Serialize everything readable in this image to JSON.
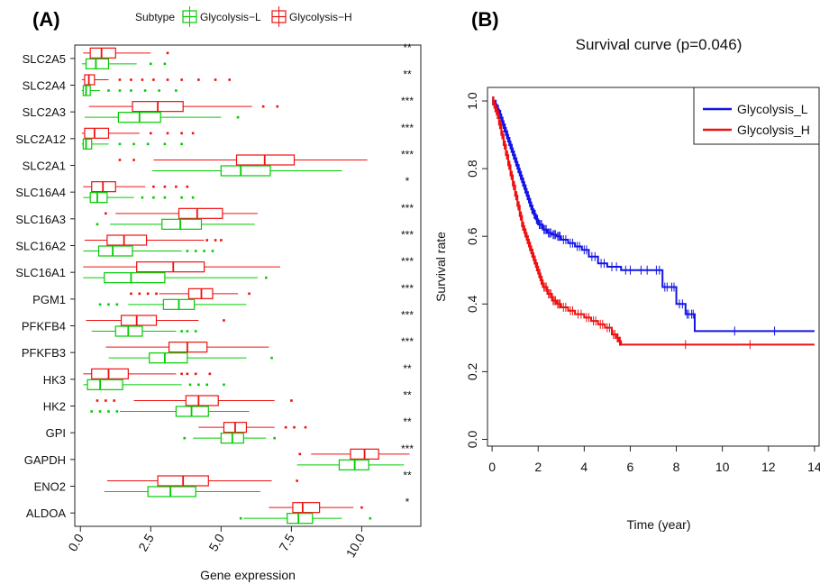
{
  "colors": {
    "low": "#00cc00",
    "high": "#ee1111",
    "km_low": "#1414e6",
    "km_high": "#ee1111"
  },
  "chart_data": [
    {
      "type": "boxplot",
      "panel_label": "(A)",
      "xlabel": "Gene expression",
      "ylabel": "",
      "xlim": [
        -0.2,
        12.1
      ],
      "xticks": [
        "0.0",
        "2.5",
        "5.0",
        "7.5",
        "10.0"
      ],
      "xtick_values": [
        0,
        2.5,
        5,
        7.5,
        10
      ],
      "legend": {
        "title": "Subtype",
        "entries": [
          "Glycolysis−L",
          "Glycolysis−H"
        ],
        "placement": "top"
      },
      "genes": [
        {
          "name": "SLC2A5",
          "signif": "**",
          "H": {
            "min": 0.1,
            "q1": 0.35,
            "med": 0.75,
            "q3": 1.25,
            "max": 2.5,
            "out": [
              3.1
            ]
          },
          "L": {
            "min": 0.05,
            "q1": 0.2,
            "med": 0.55,
            "q3": 1.0,
            "max": 2.0,
            "out": [
              2.5,
              3.0
            ]
          }
        },
        {
          "name": "SLC2A4",
          "signif": "**",
          "H": {
            "min": 0.05,
            "q1": 0.15,
            "med": 0.3,
            "q3": 0.5,
            "max": 1.0,
            "out": [
              1.4,
              1.8,
              2.2,
              2.6,
              3.1,
              3.6,
              4.2,
              4.8,
              5.3
            ]
          },
          "L": {
            "min": 0.05,
            "q1": 0.1,
            "med": 0.2,
            "q3": 0.35,
            "max": 0.7,
            "out": [
              1.0,
              1.4,
              1.8,
              2.3,
              2.8,
              3.4
            ]
          }
        },
        {
          "name": "SLC2A3",
          "signif": "***",
          "H": {
            "min": 0.3,
            "q1": 1.85,
            "med": 2.75,
            "q3": 3.65,
            "max": 6.1,
            "out": [
              6.5,
              7.0
            ]
          },
          "L": {
            "min": 0.15,
            "q1": 1.35,
            "med": 2.1,
            "q3": 2.85,
            "max": 5.0,
            "out": [
              5.6
            ]
          }
        },
        {
          "name": "SLC2A12",
          "signif": "***",
          "H": {
            "min": 0.05,
            "q1": 0.15,
            "med": 0.5,
            "q3": 1.0,
            "max": 2.1,
            "out": [
              2.5,
              3.1,
              3.6,
              4.0
            ]
          },
          "L": {
            "min": 0.05,
            "q1": 0.1,
            "med": 0.2,
            "q3": 0.4,
            "max": 1.0,
            "out": [
              1.4,
              1.9,
              2.4,
              3.0,
              3.6
            ]
          }
        },
        {
          "name": "SLC2A1",
          "signif": "***",
          "H": {
            "min": 2.6,
            "q1": 5.55,
            "med": 6.55,
            "q3": 7.6,
            "max": 10.2,
            "out": [
              1.4,
              1.9
            ]
          },
          "L": {
            "min": 2.55,
            "q1": 5.0,
            "med": 5.7,
            "q3": 6.75,
            "max": 9.3,
            "out": []
          }
        },
        {
          "name": "SLC16A4",
          "signif": "*",
          "H": {
            "min": 0.1,
            "q1": 0.4,
            "med": 0.8,
            "q3": 1.25,
            "max": 2.3,
            "out": [
              2.6,
              3.0,
              3.4,
              3.8
            ]
          },
          "L": {
            "min": 0.1,
            "q1": 0.35,
            "med": 0.6,
            "q3": 0.95,
            "max": 1.9,
            "out": [
              2.2,
              2.6,
              3.0,
              3.6,
              4.0
            ]
          }
        },
        {
          "name": "SLC16A3",
          "signif": "***",
          "H": {
            "min": 1.25,
            "q1": 3.5,
            "med": 4.15,
            "q3": 5.05,
            "max": 6.3,
            "out": [
              0.9
            ]
          },
          "L": {
            "min": 1.05,
            "q1": 2.9,
            "med": 3.55,
            "q3": 4.3,
            "max": 6.2,
            "out": [
              0.6
            ]
          }
        },
        {
          "name": "SLC16A2",
          "signif": "***",
          "H": {
            "min": 0.15,
            "q1": 0.95,
            "med": 1.55,
            "q3": 2.35,
            "max": 4.4,
            "out": [
              4.5,
              4.8,
              5.0
            ]
          },
          "L": {
            "min": 0.1,
            "q1": 0.65,
            "med": 1.15,
            "q3": 1.85,
            "max": 3.6,
            "out": [
              3.8,
              4.1,
              4.4,
              4.7
            ]
          }
        },
        {
          "name": "SLC16A1",
          "signif": "***",
          "H": {
            "min": 0.1,
            "q1": 2.0,
            "med": 3.3,
            "q3": 4.4,
            "max": 7.1,
            "out": []
          },
          "L": {
            "min": 0.1,
            "q1": 0.85,
            "med": 1.8,
            "q3": 3.0,
            "max": 6.3,
            "out": [
              6.6
            ]
          }
        },
        {
          "name": "PGM1",
          "signif": "***",
          "H": {
            "min": 2.8,
            "q1": 3.85,
            "med": 4.3,
            "q3": 4.7,
            "max": 5.6,
            "out": [
              1.8,
              2.1,
              2.4,
              2.7,
              6.0
            ]
          },
          "L": {
            "min": 1.7,
            "q1": 2.95,
            "med": 3.5,
            "q3": 4.05,
            "max": 5.9,
            "out": [
              0.7,
              1.0,
              1.3
            ]
          }
        },
        {
          "name": "PFKFB4",
          "signif": "***",
          "H": {
            "min": 0.2,
            "q1": 1.45,
            "med": 2.0,
            "q3": 2.7,
            "max": 4.2,
            "out": [
              5.1
            ]
          },
          "L": {
            "min": 0.4,
            "q1": 1.25,
            "med": 1.7,
            "q3": 2.2,
            "max": 3.4,
            "out": [
              3.6,
              3.8,
              4.1
            ]
          }
        },
        {
          "name": "PFKFB3",
          "signif": "***",
          "H": {
            "min": 0.9,
            "q1": 3.15,
            "med": 3.8,
            "q3": 4.5,
            "max": 6.7,
            "out": []
          },
          "L": {
            "min": 1.0,
            "q1": 2.45,
            "med": 3.0,
            "q3": 3.8,
            "max": 5.9,
            "out": [
              6.8
            ]
          }
        },
        {
          "name": "HK3",
          "signif": "**",
          "H": {
            "min": 0.1,
            "q1": 0.4,
            "med": 1.0,
            "q3": 1.7,
            "max": 3.4,
            "out": [
              3.6,
              3.8,
              4.1,
              4.6
            ]
          },
          "L": {
            "min": 0.1,
            "q1": 0.25,
            "med": 0.7,
            "q3": 1.5,
            "max": 3.6,
            "out": [
              3.9,
              4.2,
              4.5,
              5.1
            ]
          }
        },
        {
          "name": "HK2",
          "signif": "**",
          "H": {
            "min": 1.9,
            "q1": 3.75,
            "med": 4.2,
            "q3": 4.9,
            "max": 6.9,
            "out": [
              0.6,
              0.9,
              1.2,
              7.5
            ]
          },
          "L": {
            "min": 1.4,
            "q1": 3.4,
            "med": 3.95,
            "q3": 4.55,
            "max": 6.0,
            "out": [
              0.4,
              0.7,
              1.0,
              1.3
            ]
          }
        },
        {
          "name": "GPI",
          "signif": "**",
          "H": {
            "min": 4.2,
            "q1": 5.1,
            "med": 5.5,
            "q3": 5.9,
            "max": 6.9,
            "out": [
              7.3,
              7.6,
              8.0
            ]
          },
          "L": {
            "min": 4.0,
            "q1": 5.0,
            "med": 5.4,
            "q3": 5.8,
            "max": 6.6,
            "out": [
              3.7,
              6.9
            ]
          }
        },
        {
          "name": "GAPDH",
          "signif": "***",
          "H": {
            "min": 8.2,
            "q1": 9.6,
            "med": 10.1,
            "q3": 10.6,
            "max": 11.7,
            "out": [
              7.8
            ]
          },
          "L": {
            "min": 7.7,
            "q1": 9.2,
            "med": 9.75,
            "q3": 10.25,
            "max": 11.5,
            "out": []
          }
        },
        {
          "name": "ENO2",
          "signif": "**",
          "H": {
            "min": 0.95,
            "q1": 2.75,
            "med": 3.65,
            "q3": 4.55,
            "max": 6.8,
            "out": [
              7.7
            ]
          },
          "L": {
            "min": 0.85,
            "q1": 2.4,
            "med": 3.2,
            "q3": 4.1,
            "max": 6.4,
            "out": []
          }
        },
        {
          "name": "ALDOA",
          "signif": "*",
          "H": {
            "min": 6.7,
            "q1": 7.55,
            "med": 7.9,
            "q3": 8.5,
            "max": 9.7,
            "out": [
              10.0
            ]
          },
          "L": {
            "min": 5.8,
            "q1": 7.35,
            "med": 7.75,
            "q3": 8.25,
            "max": 9.3,
            "out": [
              5.7,
              10.3
            ]
          }
        }
      ]
    },
    {
      "type": "line",
      "panel_label": "(B)",
      "title": "Survival curve (p=0.046)",
      "xlabel": "Time (year)",
      "ylabel": "Survival rate",
      "xlim": [
        -0.2,
        14.2
      ],
      "ylim": [
        -0.02,
        1.04
      ],
      "xticks": [
        0,
        2,
        4,
        6,
        8,
        10,
        12,
        14
      ],
      "yticks": [
        "0.0",
        "0.2",
        "0.4",
        "0.6",
        "0.8",
        "1.0"
      ],
      "ytick_values": [
        0,
        0.2,
        0.4,
        0.6,
        0.8,
        1.0
      ],
      "legend_placement": "top-right",
      "series": [
        {
          "name": "Glycolysis_L",
          "x": [
            0,
            0.1,
            0.2,
            0.3,
            0.4,
            0.5,
            0.6,
            0.7,
            0.8,
            0.9,
            1.0,
            1.1,
            1.2,
            1.3,
            1.4,
            1.5,
            1.6,
            1.7,
            1.8,
            1.9,
            2.0,
            2.2,
            2.4,
            2.6,
            2.8,
            3.0,
            3.3,
            3.6,
            3.9,
            4.2,
            4.6,
            5.0,
            5.6,
            6.2,
            7.0,
            7.4,
            7.7,
            8.0,
            8.4,
            8.6,
            8.8,
            14.0
          ],
          "y": [
            1.0,
            0.99,
            0.975,
            0.96,
            0.94,
            0.92,
            0.9,
            0.88,
            0.86,
            0.84,
            0.82,
            0.8,
            0.78,
            0.76,
            0.74,
            0.72,
            0.7,
            0.68,
            0.665,
            0.65,
            0.635,
            0.62,
            0.61,
            0.605,
            0.6,
            0.59,
            0.58,
            0.57,
            0.56,
            0.54,
            0.52,
            0.51,
            0.5,
            0.5,
            0.5,
            0.45,
            0.45,
            0.4,
            0.37,
            0.37,
            0.32,
            0.32
          ]
        },
        {
          "name": "Glycolysis_H",
          "x": [
            0,
            0.1,
            0.2,
            0.3,
            0.4,
            0.5,
            0.6,
            0.7,
            0.8,
            0.9,
            1.0,
            1.1,
            1.2,
            1.3,
            1.4,
            1.5,
            1.6,
            1.7,
            1.8,
            1.9,
            2.0,
            2.1,
            2.2,
            2.4,
            2.6,
            2.8,
            3.0,
            3.3,
            3.6,
            4.0,
            4.3,
            4.6,
            4.9,
            5.2,
            5.4,
            5.5,
            5.6,
            14.0
          ],
          "y": [
            1.0,
            0.98,
            0.96,
            0.93,
            0.9,
            0.87,
            0.84,
            0.81,
            0.78,
            0.75,
            0.72,
            0.69,
            0.66,
            0.63,
            0.61,
            0.59,
            0.57,
            0.55,
            0.53,
            0.51,
            0.49,
            0.47,
            0.45,
            0.43,
            0.41,
            0.4,
            0.39,
            0.38,
            0.37,
            0.36,
            0.35,
            0.34,
            0.33,
            0.31,
            0.3,
            0.29,
            0.28,
            0.28
          ]
        }
      ]
    }
  ]
}
